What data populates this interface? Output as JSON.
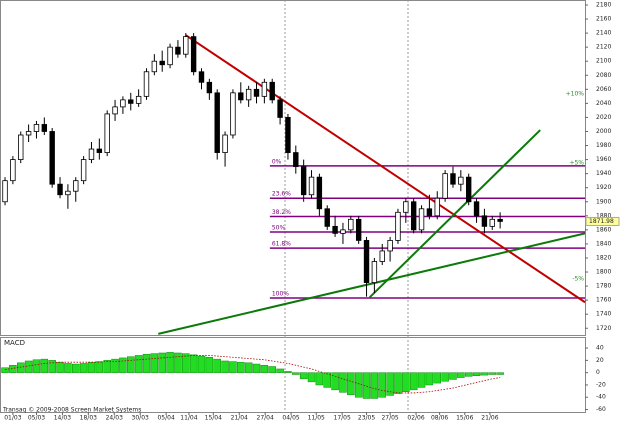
{
  "chart_data": [
    {
      "type": "candlestick",
      "xlim": [
        -0.64,
        73.8
      ],
      "ylim": [
        1710.4,
        2187.1
      ],
      "yticks": [
        2180,
        2160,
        2140,
        2120,
        2100,
        2080,
        2060,
        2040,
        2020,
        2000,
        1980,
        1960,
        1940,
        1920,
        1900,
        1880,
        1860,
        1840,
        1820,
        1800,
        1780,
        1760,
        1740,
        1720
      ],
      "up_color": "#ffffff",
      "down_color": "#000000",
      "candles": [
        [
          1900,
          1935,
          1895,
          1930
        ],
        [
          1930,
          1965,
          1925,
          1960
        ],
        [
          1960,
          2000,
          1955,
          1995
        ],
        [
          1995,
          2010,
          1985,
          2000
        ],
        [
          2000,
          2015,
          1990,
          2010
        ],
        [
          2010,
          2020,
          1995,
          2000
        ],
        [
          2000,
          2005,
          1920,
          1925
        ],
        [
          1925,
          1935,
          1905,
          1910
        ],
        [
          1910,
          1925,
          1890,
          1915
        ],
        [
          1915,
          1935,
          1900,
          1930
        ],
        [
          1930,
          1965,
          1925,
          1960
        ],
        [
          1960,
          1985,
          1955,
          1975
        ],
        [
          1975,
          1990,
          1960,
          1970
        ],
        [
          1970,
          2030,
          1965,
          2025
        ],
        [
          2025,
          2045,
          2015,
          2035
        ],
        [
          2035,
          2050,
          2025,
          2045
        ],
        [
          2045,
          2055,
          2030,
          2040
        ],
        [
          2040,
          2060,
          2035,
          2050
        ],
        [
          2050,
          2090,
          2045,
          2085
        ],
        [
          2085,
          2110,
          2080,
          2100
        ],
        [
          2100,
          2115,
          2085,
          2095
        ],
        [
          2095,
          2125,
          2090,
          2120
        ],
        [
          2120,
          2130,
          2105,
          2110
        ],
        [
          2110,
          2140,
          2105,
          2135
        ],
        [
          2135,
          2140,
          2080,
          2085
        ],
        [
          2085,
          2090,
          2060,
          2070
        ],
        [
          2070,
          2075,
          2045,
          2055
        ],
        [
          2055,
          2060,
          1960,
          1970
        ],
        [
          1970,
          2000,
          1950,
          1995
        ],
        [
          1995,
          2060,
          1990,
          2055
        ],
        [
          2055,
          2070,
          2040,
          2045
        ],
        [
          2045,
          2065,
          2035,
          2060
        ],
        [
          2060,
          2070,
          2040,
          2050
        ],
        [
          2050,
          2075,
          2040,
          2070
        ],
        [
          2070,
          2075,
          2040,
          2045
        ],
        [
          2045,
          2050,
          2010,
          2020
        ],
        [
          2020,
          2025,
          1960,
          1970
        ],
        [
          1970,
          1980,
          1940,
          1950
        ],
        [
          1950,
          1960,
          1900,
          1910
        ],
        [
          1910,
          1945,
          1905,
          1935
        ],
        [
          1935,
          1940,
          1880,
          1890
        ],
        [
          1890,
          1895,
          1860,
          1865
        ],
        [
          1865,
          1880,
          1850,
          1855
        ],
        [
          1855,
          1870,
          1840,
          1860
        ],
        [
          1860,
          1880,
          1855,
          1875
        ],
        [
          1875,
          1880,
          1840,
          1845
        ],
        [
          1845,
          1850,
          1765,
          1785
        ],
        [
          1785,
          1820,
          1770,
          1815
        ],
        [
          1815,
          1840,
          1810,
          1830
        ],
        [
          1830,
          1850,
          1815,
          1845
        ],
        [
          1845,
          1890,
          1840,
          1885
        ],
        [
          1885,
          1905,
          1870,
          1900
        ],
        [
          1900,
          1905,
          1855,
          1860
        ],
        [
          1860,
          1895,
          1855,
          1890
        ],
        [
          1890,
          1910,
          1875,
          1880
        ],
        [
          1880,
          1915,
          1875,
          1905
        ],
        [
          1905,
          1945,
          1900,
          1940
        ],
        [
          1940,
          1950,
          1920,
          1925
        ],
        [
          1925,
          1945,
          1915,
          1935
        ],
        [
          1935,
          1940,
          1895,
          1900
        ],
        [
          1900,
          1905,
          1870,
          1880
        ],
        [
          1880,
          1890,
          1855,
          1865
        ],
        [
          1865,
          1880,
          1860,
          1875
        ],
        [
          1875,
          1885,
          1862,
          1872
        ]
      ],
      "lines": [
        {
          "color": "#c00000",
          "x": [
            23,
            73.8
          ],
          "y": [
            2137,
            1757
          ]
        },
        {
          "color": "#0a7a0a",
          "x": [
            19.5,
            73.8
          ],
          "y": [
            1712,
            1855
          ]
        },
        {
          "color": "#0a7a0a",
          "x": [
            46.4,
            68.1
          ],
          "y": [
            1764,
            2002
          ]
        }
      ],
      "fib_color": "#800080",
      "fib_from": 33.7,
      "fib_levels": [
        {
          "value": 1951,
          "label": "0%"
        },
        {
          "value": 1905,
          "label": "23.6%"
        },
        {
          "value": 1879,
          "label": "38.2%"
        },
        {
          "value": 1857,
          "label": "50%"
        },
        {
          "value": 1834,
          "label": "61.8%"
        },
        {
          "value": 1763,
          "label": "100%"
        }
      ],
      "side_labels": [
        {
          "value": 2053,
          "label": "+10%"
        },
        {
          "value": 1955,
          "label": "+5%"
        },
        {
          "value": 1790,
          "label": "-5%"
        }
      ],
      "last": 1871.98
    },
    {
      "type": "macd",
      "title": "MACD",
      "footer": "Transaq © 2009-2008 Screen Market Systems",
      "xlim": [
        -0.64,
        73.8
      ],
      "ylim": [
        -64,
        58
      ],
      "yticks": [
        40,
        20,
        0,
        -20,
        -40,
        -60
      ],
      "xticks": [
        {
          "value": 1,
          "label": "01/03"
        },
        {
          "value": 4,
          "label": "05/03"
        },
        {
          "value": 7.3,
          "label": "14/03"
        },
        {
          "value": 10.6,
          "label": "18/03"
        },
        {
          "value": 13.9,
          "label": "24/03"
        },
        {
          "value": 17.2,
          "label": "30/03"
        },
        {
          "value": 20.5,
          "label": "05/04"
        },
        {
          "value": 23.4,
          "label": "11/04"
        },
        {
          "value": 26.5,
          "label": "15/04"
        },
        {
          "value": 29.8,
          "label": "21/04"
        },
        {
          "value": 33.1,
          "label": "27/04"
        },
        {
          "value": 36.4,
          "label": "04/05"
        },
        {
          "value": 39.6,
          "label": "11/05"
        },
        {
          "value": 42.9,
          "label": "17/05"
        },
        {
          "value": 46,
          "label": "23/05"
        },
        {
          "value": 49,
          "label": "27/05"
        },
        {
          "value": 52.3,
          "label": "02/06"
        },
        {
          "value": 55.3,
          "label": "08/06"
        },
        {
          "value": 58.5,
          "label": "15/06"
        },
        {
          "value": 61.7,
          "label": "21/06"
        }
      ],
      "histogram": {
        "color": "#22dd22",
        "values": [
          8,
          12,
          16,
          19,
          21,
          22,
          20,
          17,
          15,
          14,
          15,
          17,
          18,
          20,
          22,
          24,
          26,
          28,
          30,
          31,
          32,
          33,
          32,
          31,
          29,
          27,
          25,
          22,
          19,
          18,
          17,
          16,
          14,
          12,
          10,
          6,
          2,
          -3,
          -10,
          -15,
          -20,
          -24,
          -28,
          -32,
          -36,
          -40,
          -42,
          -42,
          -40,
          -37,
          -34,
          -31,
          -28,
          -24,
          -20,
          -17,
          -14,
          -11,
          -8,
          -6,
          -5,
          -4,
          -3,
          -3
        ]
      },
      "signal": {
        "color": "#b00000",
        "values": [
          5,
          7,
          9,
          11,
          13,
          15,
          16,
          17,
          17,
          17,
          17,
          17,
          17,
          18,
          18,
          19,
          20,
          21,
          22,
          23,
          24,
          25,
          26,
          27,
          28,
          28,
          28,
          27,
          26,
          25,
          24,
          23,
          22,
          21,
          19,
          17,
          15,
          12,
          9,
          6,
          2,
          -2,
          -6,
          -10,
          -14,
          -18,
          -22,
          -26,
          -29,
          -31,
          -33,
          -33,
          -33,
          -32,
          -31,
          -29,
          -27,
          -25,
          -22,
          -19,
          -16,
          -13,
          -10,
          -8
        ]
      }
    }
  ]
}
